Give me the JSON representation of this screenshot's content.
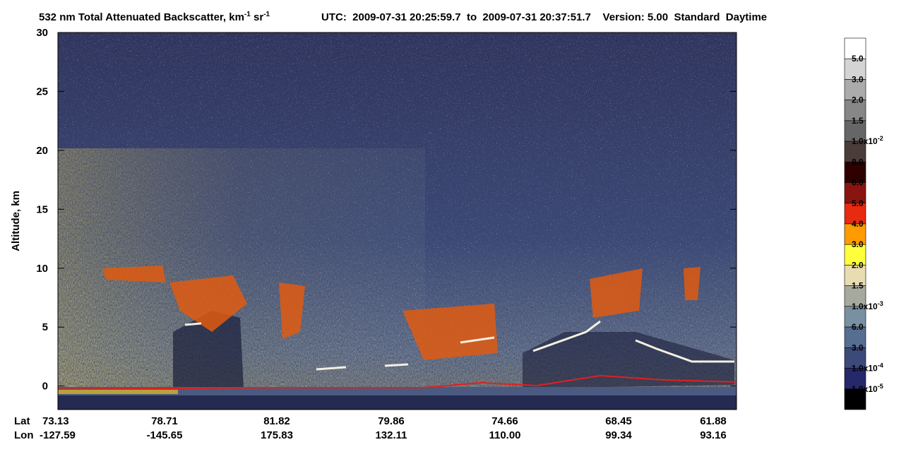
{
  "chart_data": {
    "type": "heatmap",
    "title": {
      "text_1": "532 nm Total Attenuated Backscatter, km",
      "sup_1": "-1",
      "text_2": "sr",
      "sup_2": "-1"
    },
    "subtitle": "UTC:  2009-07-31 20:25:59.7  to  2009-07-31 20:37:51.7    Version: 5.00  Standard  Daytime",
    "ylabel": "Altitude, km",
    "ylim": [
      -2,
      30
    ],
    "yticks": [
      0,
      5,
      10,
      15,
      20,
      25,
      30
    ],
    "x_row_labels": [
      "Lat",
      "Lon"
    ],
    "lat": [
      "73.13",
      "78.71",
      "81.82",
      "79.86",
      "74.66",
      "68.45",
      "61.88"
    ],
    "lon": [
      "-127.59",
      "-145.65",
      "175.83",
      "132.11",
      "110.00",
      "99.34",
      "93.16"
    ],
    "colorbar": {
      "colors": [
        "#ffffff",
        "#d4d4d4",
        "#ababab",
        "#878787",
        "#666666",
        "#4a3c38",
        "#2e0000",
        "#8a1510",
        "#e82a10",
        "#ff9a00",
        "#ffff3c",
        "#e8dcb0",
        "#a6aa9e",
        "#7890a2",
        "#566e90",
        "#3c4a7a",
        "#25286a",
        "#000000"
      ],
      "labels": [
        "5.0",
        "3.0",
        "2.0",
        "1.5",
        {
          "text": "1.0x10",
          "sup": "-2"
        },
        "8.0",
        "6.0",
        "5.0",
        "4.0",
        "3.0",
        "2.0",
        "1.5",
        {
          "text": "1.0x10",
          "sup": "-3"
        },
        "6.0",
        "3.0",
        {
          "text": "1.0x10",
          "sup": "-4"
        },
        {
          "text": "1.0x10",
          "sup": "-5"
        }
      ]
    }
  }
}
